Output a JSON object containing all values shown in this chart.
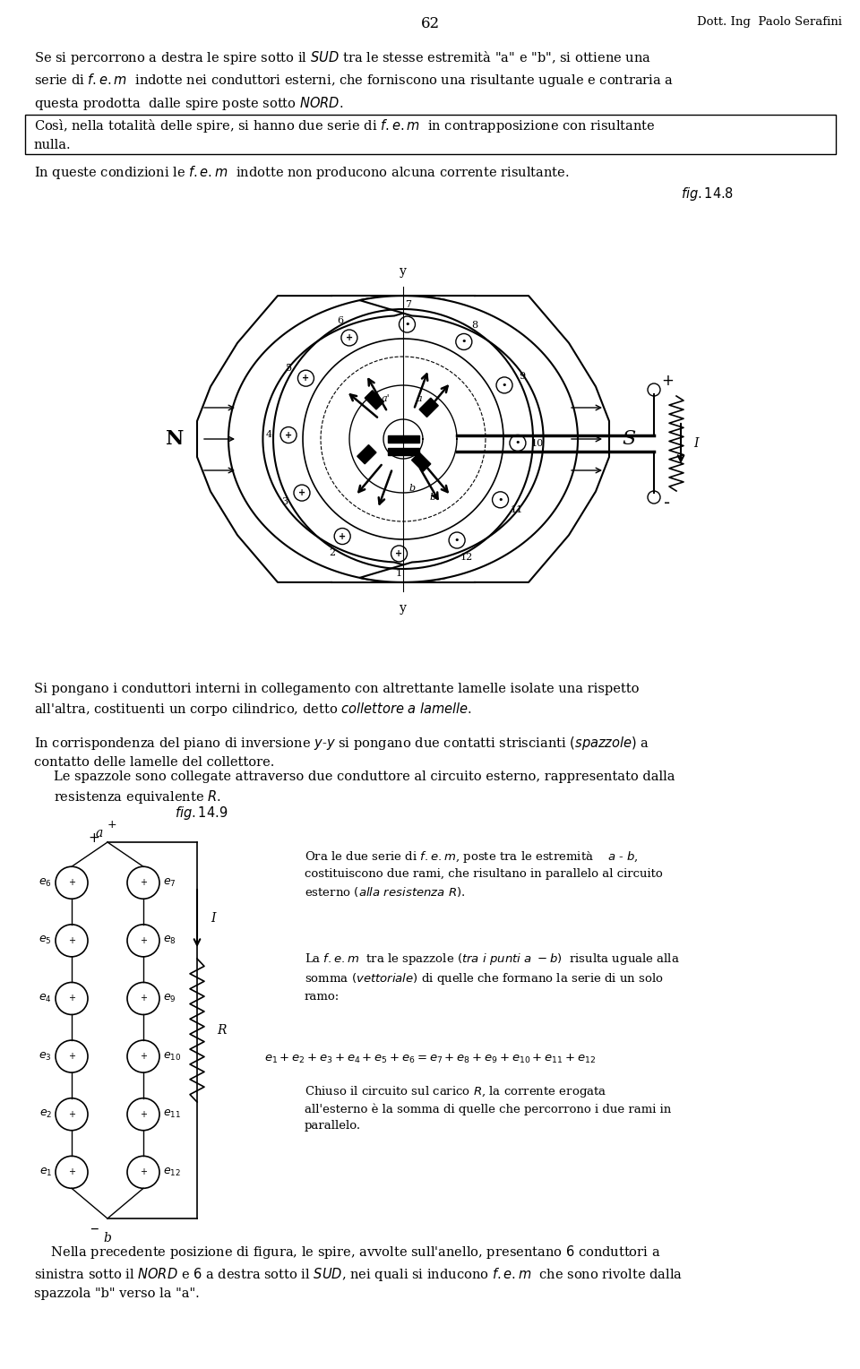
{
  "page_number": "62",
  "author": "Dott. Ing  Paolo Serafini",
  "bg": "#ffffff",
  "tc": "#000000",
  "fs": 10.5,
  "fs_s": 9.5,
  "p1": "Se si percorrono a destra le spire sotto il $\\mathit{SUD}$ tra le stesse estremità \"a\" e \"b\", si ottiene una\nserie di $\\mathit{f.e.m}$  indotte nei conduttori esterni, che forniscono una risultante uguale e contraria a\nquesta prodotta  dalle spire poste sotto $\\mathit{NORD}$.",
  "p2": "Così, nella totalità delle spire, si hanno due serie di $\\mathit{f.e.m}$  in contrapposizione con risultante\nnulla.",
  "p3": "In queste condizioni le $\\mathit{f.e.m}$  indotte non producono alcuna corrente risultante.",
  "fig148_label": "$\\mathit{fig.14.8}$",
  "p_below": "Si pongano i conduttori interni in collegamento con altrettante lamelle isolate una rispetto\nall'altra, costituenti un corpo cilindrico, detto $\\mathit{collettore\\ a\\ lamelle}$.",
  "p_corr1": "In corrispondenza del piano di inversione $\\mathit{y}$-$\\mathit{y}$ si pongano due contatti striscianti $\\mathit{(spazzole)}$ a\ncontatto delle lamelle del collettore.",
  "p_corr2": "Le spazzole sono collegate attraverso due conduttore al circuito esterno, rappresentato dalla\nresistenza equivalente $\\mathit{R}$.",
  "fig149_label": "$\\mathit{fig.14.9}$",
  "p_ora": "Ora le due serie di $\\mathit{f.e.m}$, poste tra le estremità    $\\mathit{a}$ - $\\mathit{b}$,\ncostituiscono due rami, che risultano in parallelo al circuito\nesterno $\\mathit{(alla\\ resistenza\\ R)}$.",
  "p_la": "La $\\mathit{f.e.m}$  tra le spazzole $\\mathit{(tra\\ i\\ punti\\ a\\ -b)}$  risulta uguale alla\nsomma $\\mathit{(vettoriale)}$ di quelle che formano la serie di un solo\nramo:",
  "formula": "$\\mathit{e_1 + e_2 + e_3 + e_4 + e_5 + e_6 = e_7 + e_8 + e_9 + e_{10} + e_{11} + e_{12}}$",
  "p_chiuso": "Chiuso il circuito sul carico $\\mathit{R}$, la corrente erogata\nall'esterno è la somma di quelle che percorrono i due rami in\nparallelo.",
  "p_nella": "    Nella precedente posizione di figura, le spire, avvolte sull'anello, presentano $6$ conduttori a\nsinistra sotto il $\\mathit{NORD}$ e $6$ a destra sotto il $\\mathit{SUD}$, nei quali si inducono $\\mathit{f.e.m}$  che sono rivolte dalla\nspazzola \"b\" verso la \"a\"."
}
